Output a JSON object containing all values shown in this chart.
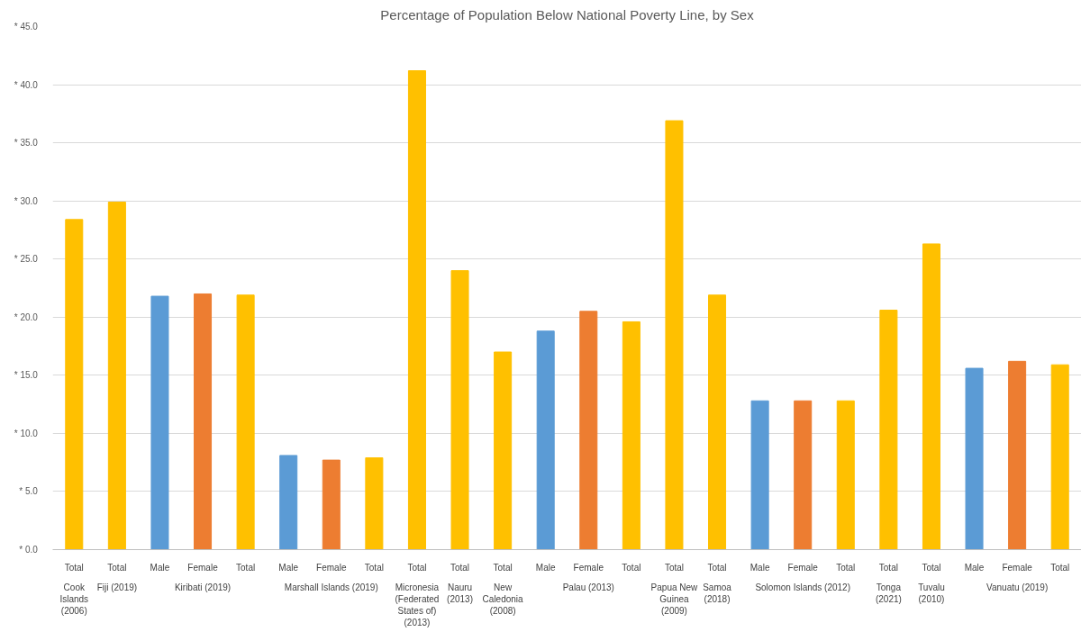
{
  "chart_data": {
    "type": "bar",
    "title": "Percentage of Population Below National Poverty Line, by Sex",
    "categories": [
      "Total",
      "Total",
      "Male",
      "Female",
      "Total",
      "Male",
      "Female",
      "Total",
      "Total",
      "Total",
      "Total",
      "Male",
      "Female",
      "Total",
      "Total",
      "Total",
      "Male",
      "Female",
      "Total",
      "Total",
      "Total",
      "Male",
      "Female",
      "Total"
    ],
    "values": [
      28.4,
      29.9,
      21.8,
      22.0,
      21.9,
      8.1,
      7.7,
      7.9,
      41.2,
      24.0,
      17.0,
      18.8,
      20.5,
      19.6,
      36.9,
      21.9,
      12.8,
      12.8,
      12.8,
      20.6,
      26.3,
      15.6,
      16.2,
      15.9
    ],
    "colors": [
      "#ffc000",
      "#ffc000",
      "#5b9bd5",
      "#ed7d31",
      "#ffc000",
      "#5b9bd5",
      "#ed7d31",
      "#ffc000",
      "#ffc000",
      "#ffc000",
      "#ffc000",
      "#5b9bd5",
      "#ed7d31",
      "#ffc000",
      "#ffc000",
      "#ffc000",
      "#5b9bd5",
      "#ed7d31",
      "#ffc000",
      "#ffc000",
      "#ffc000",
      "#5b9bd5",
      "#ed7d31",
      "#ffc000"
    ],
    "annotations": [
      "Cook Islands (2006)",
      "Fiji (2019)",
      "Kiribati (2019)",
      "Marshall Islands (2019)",
      "Micronesia (Federated States of) (2013)",
      "Nauru (2013)",
      "New Caledonia (2008)",
      "Palau (2013)",
      "Papua New Guinea (2009)",
      "Samoa (2018)",
      "Solomon Islands (2012)",
      "Tonga (2021)",
      "Tuvalu (2010)",
      "Vanuatu (2019)"
    ],
    "ylim": [
      0,
      45
    ],
    "yticks": [
      {
        "value": 0,
        "label": "*   0.0"
      },
      {
        "value": 5,
        "label": "*   5.0"
      },
      {
        "value": 10,
        "label": "*   10.0"
      },
      {
        "value": 15,
        "label": "*   15.0"
      },
      {
        "value": 20,
        "label": "*   20.0"
      },
      {
        "value": 25,
        "label": "*   25.0"
      },
      {
        "value": 30,
        "label": "*   30.0"
      },
      {
        "value": 35,
        "label": "*   35.0"
      },
      {
        "value": 40,
        "label": "*   40.0"
      },
      {
        "value": 45,
        "label": "*   45.0"
      }
    ],
    "grid": "y"
  }
}
